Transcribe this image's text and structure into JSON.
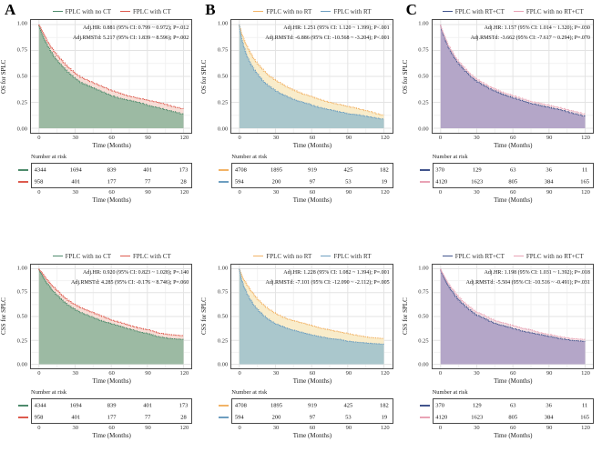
{
  "figure": {
    "panel_letters": [
      "A",
      "B",
      "C"
    ],
    "risk_label": "Number at risk",
    "xlabel": "Time (Months)"
  },
  "chart_data": [
    {
      "panel": "A",
      "row": "top",
      "type": "area",
      "ylabel": "OS for SPLC",
      "xlabel": "Time (Months)",
      "xlim": [
        0,
        120
      ],
      "ylim": [
        0,
        1
      ],
      "grid": true,
      "legend_position": "top",
      "xticks": [
        "0",
        "30",
        "60",
        "90",
        "120"
      ],
      "yticks": [
        "1.00",
        "0.75",
        "0.50",
        "0.25",
        "0.00"
      ],
      "annotations": [
        "Adj.HR: 0.881 (95% CI: 0.799 ~ 0.972); P=.012",
        "Adj.RMSTd: 5.217 (95% CI: 1.839 ~ 8.596); P=.002"
      ],
      "x": [
        0,
        1,
        2,
        4,
        6,
        9,
        12,
        16,
        20,
        25,
        30,
        36,
        42,
        48,
        54,
        60,
        68,
        76,
        84,
        92,
        100,
        110,
        120
      ],
      "fill_order": [
        1,
        0
      ],
      "series": [
        {
          "name": "FPLC with no CT",
          "line_color": "#4e8b6c",
          "fill_color": "#9cbaa3",
          "values": [
            1.0,
            0.96,
            0.93,
            0.88,
            0.83,
            0.77,
            0.71,
            0.65,
            0.6,
            0.54,
            0.49,
            0.44,
            0.41,
            0.38,
            0.35,
            0.32,
            0.29,
            0.27,
            0.25,
            0.22,
            0.2,
            0.17,
            0.14
          ],
          "number_at_risk": [
            "4344",
            "1694",
            "839",
            "401",
            "173"
          ]
        },
        {
          "name": "FPLC with CT",
          "line_color": "#dd5a4e",
          "fill_color": "#f7ddd6",
          "values": [
            1.0,
            0.98,
            0.96,
            0.92,
            0.87,
            0.81,
            0.76,
            0.7,
            0.65,
            0.59,
            0.54,
            0.49,
            0.46,
            0.43,
            0.4,
            0.37,
            0.34,
            0.31,
            0.29,
            0.27,
            0.25,
            0.22,
            0.19
          ],
          "number_at_risk": [
            "958",
            "401",
            "177",
            "77",
            "28"
          ]
        }
      ]
    },
    {
      "panel": "B",
      "row": "top",
      "type": "area",
      "ylabel": "OS for SPLC",
      "xlabel": "Time (Months)",
      "xlim": [
        0,
        120
      ],
      "ylim": [
        0,
        1
      ],
      "grid": true,
      "legend_position": "top",
      "xticks": [
        "0",
        "30",
        "60",
        "90",
        "120"
      ],
      "yticks": [
        "1.00",
        "0.75",
        "0.50",
        "0.25",
        "0.00"
      ],
      "annotations": [
        "Adj.HR: 1.251 (95% CI: 1.120 ~ 1.399); P<.001",
        "Adj.RMSTd: -6.886 (95% CI: -10.568 ~ -3.204); P<.001"
      ],
      "x": [
        0,
        1,
        2,
        4,
        6,
        9,
        12,
        16,
        20,
        25,
        30,
        36,
        42,
        48,
        54,
        60,
        68,
        76,
        84,
        92,
        100,
        110,
        120
      ],
      "fill_order": [
        0,
        1
      ],
      "series": [
        {
          "name": "FPLC with no RT",
          "line_color": "#f2b366",
          "fill_color": "#f9ecca",
          "values": [
            1.0,
            0.96,
            0.92,
            0.86,
            0.81,
            0.74,
            0.68,
            0.62,
            0.57,
            0.51,
            0.47,
            0.43,
            0.39,
            0.36,
            0.33,
            0.31,
            0.28,
            0.25,
            0.23,
            0.21,
            0.19,
            0.16,
            0.13
          ],
          "number_at_risk": [
            "4708",
            "1895",
            "919",
            "425",
            "182"
          ]
        },
        {
          "name": "FPLC with RT",
          "line_color": "#6d9ec0",
          "fill_color": "#aac7cc",
          "values": [
            1.0,
            0.93,
            0.87,
            0.79,
            0.72,
            0.64,
            0.58,
            0.52,
            0.46,
            0.41,
            0.37,
            0.33,
            0.3,
            0.27,
            0.25,
            0.23,
            0.2,
            0.18,
            0.16,
            0.14,
            0.13,
            0.11,
            0.09
          ],
          "number_at_risk": [
            "594",
            "200",
            "97",
            "53",
            "19"
          ]
        }
      ]
    },
    {
      "panel": "C",
      "row": "top",
      "type": "area",
      "ylabel": "OS for SPLC",
      "xlabel": "Time (Months)",
      "xlim": [
        0,
        120
      ],
      "ylim": [
        0,
        1
      ],
      "grid": true,
      "legend_position": "top",
      "xticks": [
        "0",
        "30",
        "60",
        "90",
        "120"
      ],
      "yticks": [
        "1.00",
        "0.75",
        "0.50",
        "0.25",
        "0.00"
      ],
      "annotations": [
        "Adj.HR: 1.157 (95% CI: 1.014 ~ 1.320); P=.030",
        "Adj.RMSTd: -3.662 (95% CI: -7.617 ~ 0.294); P=.070"
      ],
      "x": [
        0,
        1,
        2,
        4,
        6,
        9,
        12,
        16,
        20,
        25,
        30,
        36,
        42,
        48,
        54,
        60,
        68,
        76,
        84,
        92,
        100,
        110,
        120
      ],
      "fill_order": [
        1,
        0
      ],
      "series": [
        {
          "name": "FPLC with RT+CT",
          "line_color": "#41548c",
          "fill_color": "#b4a6c8",
          "values": [
            1.0,
            0.95,
            0.92,
            0.86,
            0.8,
            0.74,
            0.68,
            0.62,
            0.57,
            0.51,
            0.46,
            0.42,
            0.38,
            0.35,
            0.32,
            0.3,
            0.27,
            0.24,
            0.22,
            0.2,
            0.18,
            0.15,
            0.12
          ],
          "number_at_risk": [
            "370",
            "129",
            "63",
            "36",
            "11"
          ]
        },
        {
          "name": "FPLC with no RT+CT",
          "line_color": "#e9a3b5",
          "fill_color": "#f3dfe4",
          "values": [
            1.0,
            0.96,
            0.93,
            0.88,
            0.82,
            0.76,
            0.7,
            0.64,
            0.59,
            0.53,
            0.48,
            0.44,
            0.4,
            0.37,
            0.34,
            0.32,
            0.29,
            0.26,
            0.24,
            0.22,
            0.2,
            0.17,
            0.14
          ],
          "number_at_risk": [
            "4120",
            "1623",
            "805",
            "384",
            "165"
          ]
        }
      ]
    },
    {
      "panel": "A",
      "row": "bottom",
      "type": "area",
      "ylabel": "CSS for SPLC",
      "xlabel": "Time (Months)",
      "xlim": [
        0,
        120
      ],
      "ylim": [
        0,
        1
      ],
      "grid": true,
      "legend_position": "top",
      "xticks": [
        "0",
        "30",
        "60",
        "90",
        "120"
      ],
      "yticks": [
        "1.00",
        "0.75",
        "0.50",
        "0.25",
        "0.00"
      ],
      "annotations": [
        "Adj.HR: 0.920 (95% CI: 0.823 ~ 1.028); P=.140",
        "Adj.RMSTd: 4.285 (95% CI: -0.176 ~ 8.746); P=.060"
      ],
      "x": [
        0,
        1,
        2,
        4,
        6,
        9,
        12,
        16,
        20,
        25,
        30,
        36,
        42,
        48,
        54,
        60,
        68,
        76,
        84,
        92,
        100,
        110,
        120
      ],
      "fill_order": [
        1,
        0
      ],
      "series": [
        {
          "name": "FPLC with no CT",
          "line_color": "#4e8b6c",
          "fill_color": "#9cbaa3",
          "values": [
            1.0,
            0.97,
            0.95,
            0.91,
            0.87,
            0.82,
            0.77,
            0.72,
            0.67,
            0.62,
            0.58,
            0.54,
            0.51,
            0.48,
            0.45,
            0.43,
            0.4,
            0.37,
            0.34,
            0.32,
            0.29,
            0.27,
            0.26
          ],
          "number_at_risk": [
            "4344",
            "1694",
            "839",
            "401",
            "173"
          ]
        },
        {
          "name": "FPLC with CT",
          "line_color": "#dd5a4e",
          "fill_color": "#f7ddd6",
          "values": [
            1.0,
            0.98,
            0.97,
            0.94,
            0.9,
            0.86,
            0.82,
            0.77,
            0.72,
            0.67,
            0.63,
            0.59,
            0.56,
            0.53,
            0.5,
            0.47,
            0.44,
            0.41,
            0.38,
            0.36,
            0.33,
            0.31,
            0.3
          ],
          "number_at_risk": [
            "958",
            "401",
            "177",
            "77",
            "28"
          ]
        }
      ]
    },
    {
      "panel": "B",
      "row": "bottom",
      "type": "area",
      "ylabel": "CSS for SPLC",
      "xlabel": "Time (Months)",
      "xlim": [
        0,
        120
      ],
      "ylim": [
        0,
        1
      ],
      "grid": true,
      "legend_position": "top",
      "xticks": [
        "0",
        "30",
        "60",
        "90",
        "120"
      ],
      "yticks": [
        "1.00",
        "0.75",
        "0.50",
        "0.25",
        "0.00"
      ],
      "annotations": [
        "Adj.HR: 1.228 (95% CI: 1.082 ~ 1.394); P=.001",
        "Adj.RMSTd: -7.101 (95% CI: -12.090 ~ -2.112); P=.005"
      ],
      "x": [
        0,
        1,
        2,
        4,
        6,
        9,
        12,
        16,
        20,
        25,
        30,
        36,
        42,
        48,
        54,
        60,
        68,
        76,
        84,
        92,
        100,
        110,
        120
      ],
      "fill_order": [
        0,
        1
      ],
      "series": [
        {
          "name": "FPLC with no RT",
          "line_color": "#f2b366",
          "fill_color": "#f9ecca",
          "values": [
            1.0,
            0.97,
            0.94,
            0.89,
            0.85,
            0.79,
            0.74,
            0.68,
            0.63,
            0.58,
            0.54,
            0.5,
            0.47,
            0.45,
            0.43,
            0.41,
            0.38,
            0.36,
            0.34,
            0.32,
            0.3,
            0.28,
            0.27
          ],
          "number_at_risk": [
            "4708",
            "1895",
            "919",
            "425",
            "182"
          ]
        },
        {
          "name": "FPLC with RT",
          "line_color": "#6d9ec0",
          "fill_color": "#aac7cc",
          "values": [
            1.0,
            0.94,
            0.89,
            0.82,
            0.76,
            0.69,
            0.63,
            0.57,
            0.52,
            0.47,
            0.43,
            0.4,
            0.37,
            0.35,
            0.33,
            0.31,
            0.29,
            0.27,
            0.26,
            0.24,
            0.23,
            0.22,
            0.21
          ],
          "number_at_risk": [
            "594",
            "200",
            "97",
            "53",
            "19"
          ]
        }
      ]
    },
    {
      "panel": "C",
      "row": "bottom",
      "type": "area",
      "ylabel": "CSS for SPLC",
      "xlabel": "Time (Months)",
      "xlim": [
        0,
        120
      ],
      "ylim": [
        0,
        1
      ],
      "grid": true,
      "legend_position": "top",
      "xticks": [
        "0",
        "30",
        "60",
        "90",
        "120"
      ],
      "yticks": [
        "1.00",
        "0.75",
        "0.50",
        "0.25",
        "0.00"
      ],
      "annotations": [
        "Adj.HR: 1.198 (95% CI: 1.031 ~ 1.392); P=.018",
        "Adj.RMSTd: -5.504 (95% CI: -10.516 ~ -0.491); P=.031"
      ],
      "x": [
        0,
        1,
        2,
        4,
        6,
        9,
        12,
        16,
        20,
        25,
        30,
        36,
        42,
        48,
        54,
        60,
        68,
        76,
        84,
        92,
        100,
        110,
        120
      ],
      "fill_order": [
        1,
        0
      ],
      "series": [
        {
          "name": "FPLC with RT+CT",
          "line_color": "#41548c",
          "fill_color": "#b4a6c8",
          "values": [
            1.0,
            0.96,
            0.94,
            0.89,
            0.84,
            0.78,
            0.73,
            0.67,
            0.62,
            0.57,
            0.52,
            0.49,
            0.45,
            0.42,
            0.4,
            0.38,
            0.35,
            0.33,
            0.31,
            0.29,
            0.27,
            0.25,
            0.24
          ],
          "number_at_risk": [
            "370",
            "129",
            "63",
            "36",
            "11"
          ]
        },
        {
          "name": "FPLC with no RT+CT",
          "line_color": "#e9a3b5",
          "fill_color": "#f3dfe4",
          "values": [
            1.0,
            0.97,
            0.95,
            0.91,
            0.86,
            0.81,
            0.76,
            0.7,
            0.65,
            0.6,
            0.55,
            0.52,
            0.48,
            0.45,
            0.43,
            0.41,
            0.38,
            0.36,
            0.33,
            0.31,
            0.29,
            0.27,
            0.26
          ],
          "number_at_risk": [
            "4120",
            "1623",
            "805",
            "384",
            "165"
          ]
        }
      ]
    }
  ]
}
